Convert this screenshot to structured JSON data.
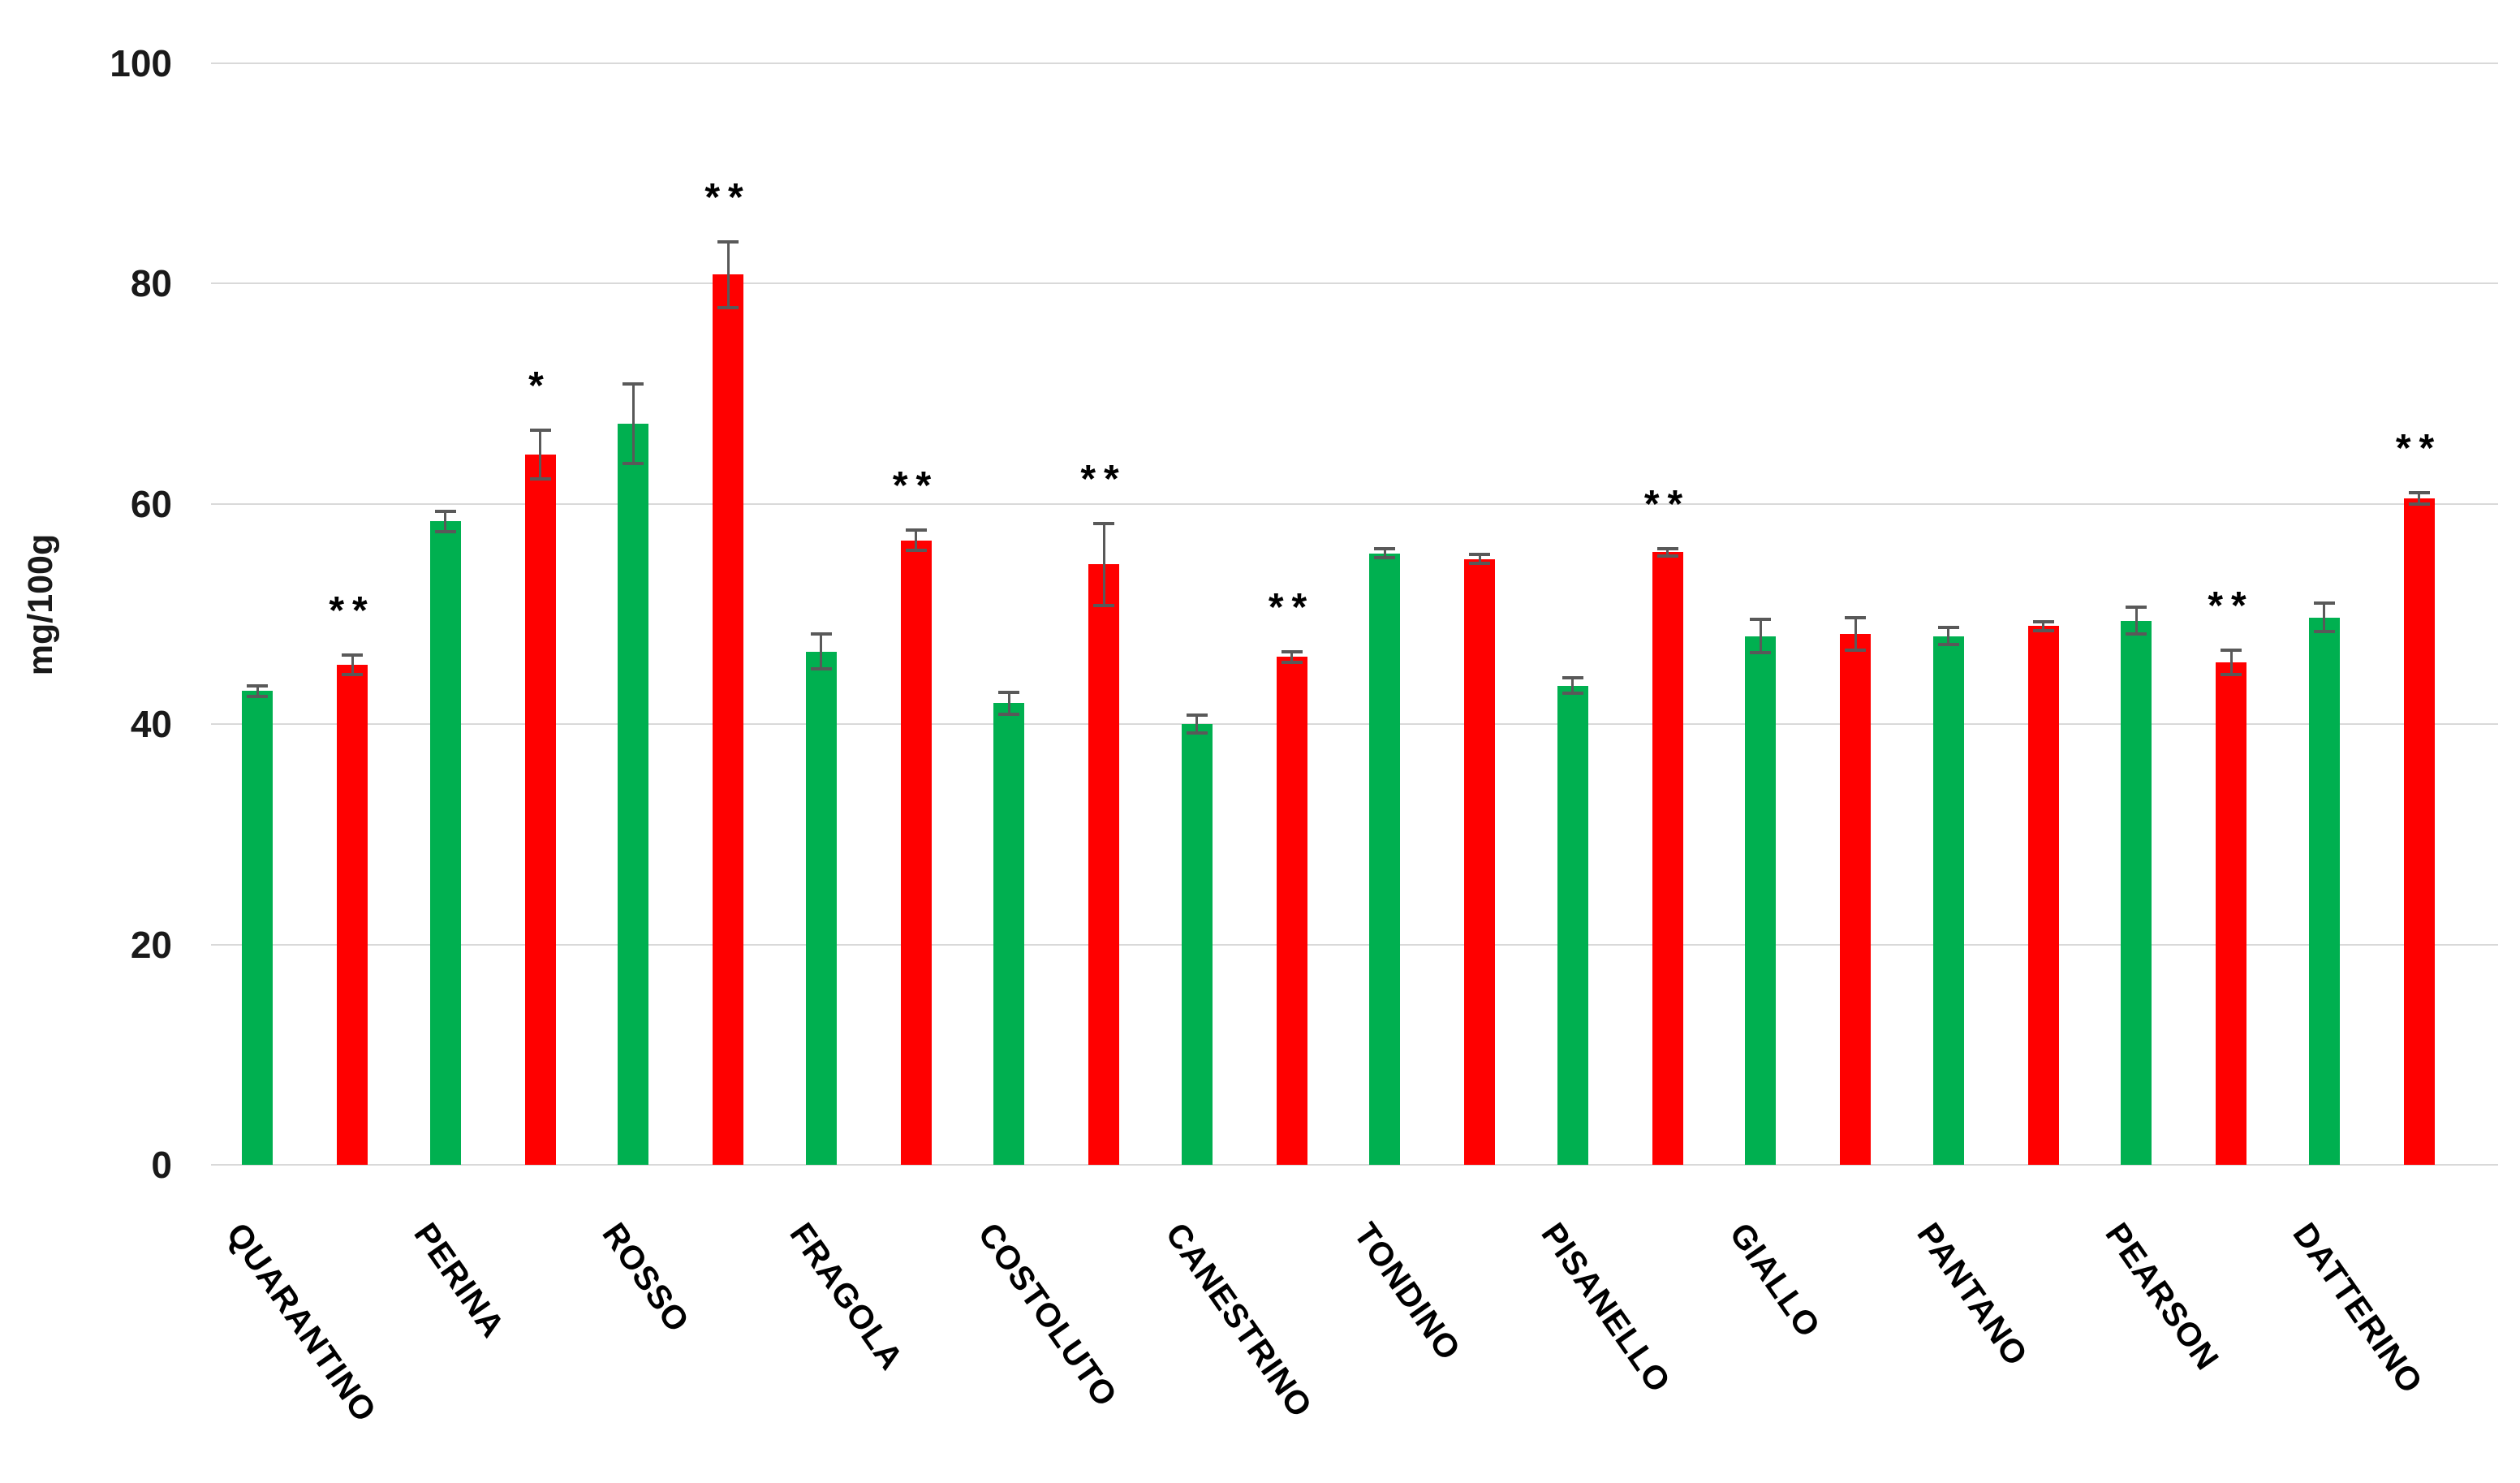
{
  "chart_data": {
    "type": "bar",
    "title": "",
    "ylabel": "mg/100g",
    "xlabel": "",
    "ylim": [
      0,
      100
    ],
    "yticks": [
      0,
      20,
      40,
      60,
      80,
      100
    ],
    "grid": true,
    "legend_position": "none",
    "categories": [
      "QUARANTINO",
      "PERINA",
      "ROSSO",
      "FRAGOLA",
      "COSTOLUTO",
      "CANESTRINO",
      "TONDINO",
      "PISANELLO",
      "GIALLO",
      "PANTANO",
      "PEARSON",
      "DATTERINO"
    ],
    "series": [
      {
        "name": "green",
        "color": "#00B050",
        "values": [
          43.0,
          58.4,
          67.3,
          46.6,
          41.9,
          40.0,
          55.5,
          43.5,
          48.0,
          48.0,
          49.4,
          49.7
        ],
        "errors": [
          0.5,
          0.9,
          3.6,
          1.6,
          1.0,
          0.8,
          0.4,
          0.7,
          1.5,
          0.8,
          1.2,
          1.3
        ]
      },
      {
        "name": "red",
        "color": "#FF0000",
        "values": [
          45.4,
          64.5,
          80.8,
          56.7,
          54.5,
          46.1,
          55.0,
          55.6,
          48.2,
          48.9,
          45.6,
          60.5
        ],
        "errors": [
          0.9,
          2.2,
          3.0,
          0.9,
          3.7,
          0.5,
          0.4,
          0.3,
          1.5,
          0.4,
          1.1,
          0.5
        ]
      }
    ],
    "significance": [
      "**",
      "*",
      "**",
      "**",
      "**",
      "**",
      "",
      "**",
      "",
      "",
      "**",
      "**"
    ],
    "error_bar_color": "#595959",
    "gridline_color": "#d9d9d9"
  }
}
